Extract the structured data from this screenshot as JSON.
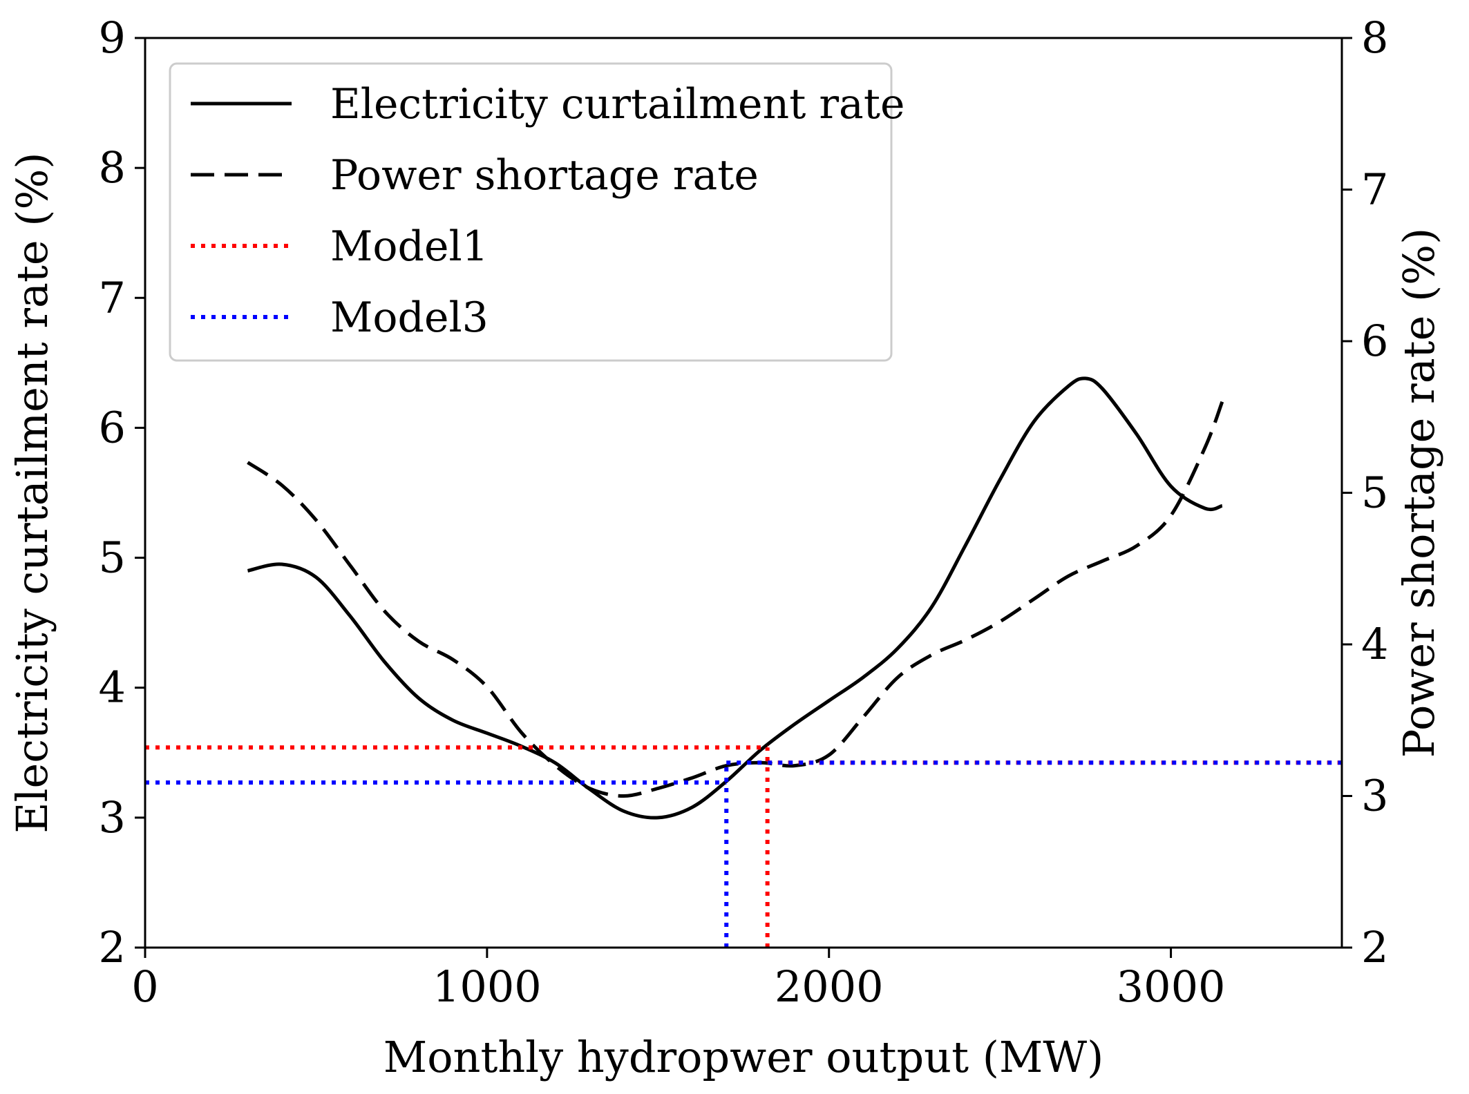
{
  "chart_data": {
    "type": "line",
    "title": "",
    "xlabel": "Monthly hydropwer output (MW)",
    "ylabel": "Electricity curtailment rate (%)",
    "y2label": "Power shortage rate (%)",
    "xlim": [
      0,
      3500
    ],
    "ylim": [
      2,
      9
    ],
    "y2lim": [
      2,
      8
    ],
    "xticks": [
      "0",
      "1000",
      "2000",
      "3000"
    ],
    "xtick_values": [
      0,
      1000,
      2000,
      3000
    ],
    "yticks": [
      "2",
      "3",
      "4",
      "5",
      "6",
      "7",
      "8",
      "9"
    ],
    "ytick_values": [
      2,
      3,
      4,
      5,
      6,
      7,
      8,
      9
    ],
    "y2ticks": [
      "2",
      "3",
      "4",
      "5",
      "6",
      "7",
      "8"
    ],
    "y2tick_values": [
      2,
      3,
      4,
      5,
      6,
      7,
      8
    ],
    "legend_position": "top-left",
    "series": [
      {
        "name": "Electricity curtailment rate",
        "axis": "left",
        "style": "solid",
        "color": "#000000",
        "x": [
          300,
          400,
          500,
          600,
          700,
          800,
          900,
          1000,
          1100,
          1200,
          1300,
          1400,
          1500,
          1600,
          1700,
          1800,
          1900,
          2000,
          2100,
          2200,
          2300,
          2400,
          2500,
          2600,
          2700,
          2750,
          2800,
          2900,
          3000,
          3100,
          3150
        ],
        "y": [
          4.9,
          4.95,
          4.85,
          4.55,
          4.2,
          3.92,
          3.75,
          3.65,
          3.55,
          3.42,
          3.22,
          3.05,
          3.0,
          3.08,
          3.28,
          3.52,
          3.72,
          3.9,
          4.08,
          4.3,
          4.62,
          5.1,
          5.6,
          6.05,
          6.32,
          6.38,
          6.3,
          5.95,
          5.55,
          5.38,
          5.4
        ]
      },
      {
        "name": "Power shortage rate",
        "axis": "right",
        "style": "dashed",
        "color": "#000000",
        "x": [
          300,
          400,
          500,
          600,
          700,
          800,
          900,
          1000,
          1100,
          1200,
          1300,
          1400,
          1500,
          1600,
          1700,
          1800,
          1900,
          2000,
          2100,
          2200,
          2300,
          2400,
          2500,
          2600,
          2700,
          2800,
          2900,
          3000,
          3100,
          3150
        ],
        "y": [
          5.2,
          5.05,
          4.82,
          4.52,
          4.22,
          4.02,
          3.9,
          3.72,
          3.42,
          3.2,
          3.05,
          3.0,
          3.05,
          3.12,
          3.2,
          3.22,
          3.2,
          3.27,
          3.52,
          3.78,
          3.93,
          4.03,
          4.15,
          4.3,
          4.45,
          4.55,
          4.65,
          4.85,
          5.3,
          5.6
        ]
      },
      {
        "name": "Model1",
        "style": "dotted",
        "color": "#ff0000",
        "lines": [
          {
            "axis": "left",
            "x": [
              0,
              1820
            ],
            "y": [
              3.54,
              3.54
            ]
          },
          {
            "axis": "right",
            "x": [
              1820,
              3500
            ],
            "y": [
              3.22,
              3.22
            ]
          },
          {
            "axis": "left",
            "x": [
              1820,
              1820
            ],
            "y": [
              2,
              3.54
            ]
          }
        ]
      },
      {
        "name": "Model3",
        "style": "dotted",
        "color": "#0000ff",
        "lines": [
          {
            "axis": "left",
            "x": [
              0,
              1700
            ],
            "y": [
              3.27,
              3.27
            ]
          },
          {
            "axis": "right",
            "x": [
              1700,
              3500
            ],
            "y": [
              3.22,
              3.22
            ]
          },
          {
            "axis": "left",
            "x": [
              1700,
              1700
            ],
            "y": [
              2,
              3.42
            ]
          }
        ]
      }
    ]
  }
}
